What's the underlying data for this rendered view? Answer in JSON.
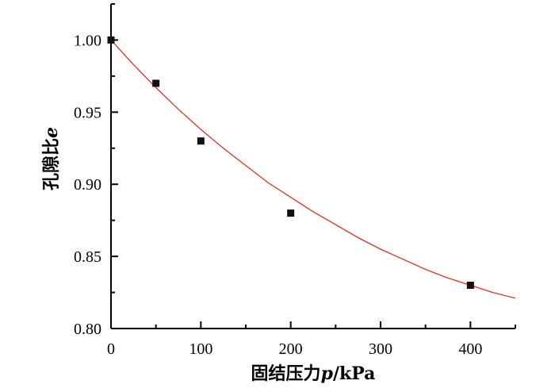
{
  "chart_data": {
    "type": "scatter",
    "xlabel": "固结压力",
    "xlabel_var": "p",
    "xlabel_unit": "/kPa",
    "ylabel": "孔隙比",
    "ylabel_var": "e",
    "xlim": [
      0,
      450
    ],
    "ylim": [
      0.8,
      1.025
    ],
    "x_ticks": [
      0,
      100,
      200,
      300,
      400
    ],
    "x_tick_labels": [
      "0",
      "100",
      "200",
      "300",
      "400"
    ],
    "y_ticks": [
      0.8,
      0.85,
      0.9,
      0.95,
      1.0
    ],
    "y_tick_labels": [
      "0.80",
      "0.85",
      "0.90",
      "0.95",
      "1.00"
    ],
    "grid": false,
    "series": [
      {
        "kind": "points",
        "marker": "square",
        "color": "#111111",
        "x": [
          0,
          50,
          100,
          200,
          400
        ],
        "y": [
          1.0,
          0.97,
          0.93,
          0.88,
          0.83
        ]
      },
      {
        "kind": "fit-curve",
        "color": "#e8301c",
        "x": [
          0,
          25,
          50,
          75,
          100,
          125,
          150,
          175,
          200,
          225,
          250,
          275,
          300,
          325,
          350,
          375,
          400,
          425,
          450
        ],
        "y": [
          1.0,
          0.983,
          0.967,
          0.952,
          0.938,
          0.925,
          0.913,
          0.901,
          0.891,
          0.881,
          0.872,
          0.863,
          0.855,
          0.848,
          0.841,
          0.835,
          0.83,
          0.825,
          0.821
        ]
      }
    ]
  }
}
